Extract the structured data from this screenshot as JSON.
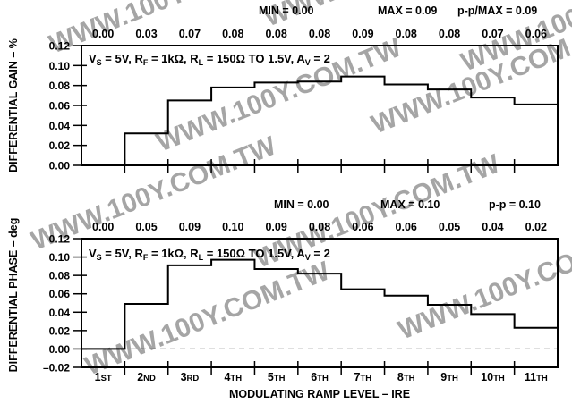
{
  "chart_data": [
    {
      "type": "step",
      "ylabel": "DIFFERENTIAL GAIN – %",
      "ylim": [
        0.0,
        0.12
      ],
      "yticks": [
        "0.12",
        "0.10",
        "0.08",
        "0.06",
        "0.04",
        "0.02",
        "0.00"
      ],
      "condition": "V_S = 5V, R_F = 1kΩ, R_L = 150Ω TO 1.5V, A_V = 2",
      "condition_parts": {
        "vs": "V",
        "vs_sub": "S",
        "vs_val": " = 5V, ",
        "rf": "R",
        "rf_sub": "F",
        "rf_val": " = 1kΩ, ",
        "rl": "R",
        "rl_sub": "L",
        "rl_val": " = 150Ω TO 1.5V, ",
        "av": "A",
        "av_sub": "V",
        "av_val": " = 2"
      },
      "stats": [
        "MIN = 0.00",
        "MAX = 0.09",
        "p-p/MAX = 0.09"
      ],
      "value_labels": [
        "0.00",
        "0.03",
        "0.07",
        "0.08",
        "0.08",
        "0.08",
        "0.09",
        "0.08",
        "0.08",
        "0.07",
        "0.06"
      ],
      "values": [
        0.0,
        0.032,
        0.065,
        0.078,
        0.083,
        0.084,
        0.089,
        0.081,
        0.076,
        0.068,
        0.061
      ]
    },
    {
      "type": "step",
      "ylabel": "DIFFERENTIAL PHASE – deg",
      "ylim": [
        -0.02,
        0.12
      ],
      "yticks": [
        "0.12",
        "0.10",
        "0.08",
        "0.06",
        "0.04",
        "0.02",
        "0.00",
        "–0.02"
      ],
      "condition": "V_S = 5V, R_F = 1kΩ, R_L = 150Ω TO 1.5V, A_V = 2",
      "condition_parts": {
        "vs": "V",
        "vs_sub": "S",
        "vs_val": " = 5V, ",
        "rf": "R",
        "rf_sub": "F",
        "rf_val": " = 1kΩ, ",
        "rl": "R",
        "rl_sub": "L",
        "rl_val": " = 150Ω TO 1.5V, ",
        "av": "A",
        "av_sub": "V",
        "av_val": " = 2"
      },
      "stats": [
        "MIN = 0.00",
        "MAX = 0.10",
        "p-p = 0.10"
      ],
      "value_labels": [
        "0.00",
        "0.05",
        "0.09",
        "0.10",
        "0.09",
        "0.08",
        "0.06",
        "0.06",
        "0.05",
        "0.04",
        "0.02"
      ],
      "values": [
        0.0,
        0.049,
        0.091,
        0.097,
        0.087,
        0.082,
        0.065,
        0.058,
        0.048,
        0.038,
        0.023
      ]
    }
  ],
  "categories": [
    {
      "num": "1",
      "suf": "ST"
    },
    {
      "num": "2",
      "suf": "ND"
    },
    {
      "num": "3",
      "suf": "RD"
    },
    {
      "num": "4",
      "suf": "TH"
    },
    {
      "num": "5",
      "suf": "TH"
    },
    {
      "num": "6",
      "suf": "TH"
    },
    {
      "num": "7",
      "suf": "TH"
    },
    {
      "num": "8",
      "suf": "TH"
    },
    {
      "num": "9",
      "suf": "TH"
    },
    {
      "num": "10",
      "suf": "TH"
    },
    {
      "num": "11",
      "suf": "TH"
    }
  ],
  "xlabel": "MODULATING RAMP LEVEL – IRE",
  "watermark": "WWW.100Y.COM.TW"
}
